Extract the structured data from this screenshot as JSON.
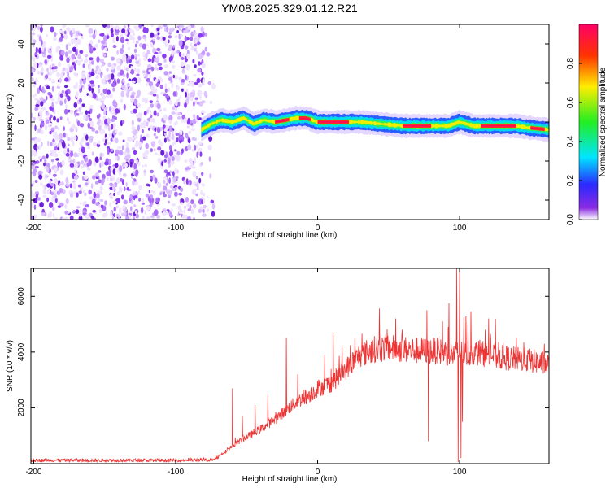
{
  "title": "YM08.2025.329.01.12.R21",
  "chart_data": [
    {
      "type": "heatmap",
      "name": "spectrogram",
      "xlabel": "Height of straight line (km)",
      "ylabel": "Frequency (Hz)",
      "xlim": [
        -202,
        163
      ],
      "ylim": [
        -50,
        50
      ],
      "xticks": [
        -200,
        -100,
        0,
        100
      ],
      "yticks": [
        -40,
        -20,
        0,
        20,
        40
      ],
      "noise_region_x": [
        -202,
        -80
      ],
      "signal_track": {
        "x": [
          -82,
          -75,
          -68,
          -60,
          -52,
          -45,
          -38,
          -30,
          -22,
          -15,
          -8,
          0,
          10,
          20,
          30,
          45,
          60,
          75,
          85,
          92,
          100,
          110,
          125,
          140,
          150,
          163
        ],
        "y": [
          -4,
          -1,
          1,
          0,
          2,
          -1,
          1,
          0,
          1,
          2,
          2,
          0,
          0,
          0,
          0,
          -1,
          -2,
          -2,
          -2,
          -2,
          0,
          -2,
          -2,
          -2,
          -3,
          -4
        ],
        "peak_segments": [
          [
            -30,
            -20
          ],
          [
            -13,
            -5
          ],
          [
            0,
            22
          ],
          [
            60,
            80
          ],
          [
            115,
            140
          ],
          [
            150,
            160
          ]
        ]
      },
      "colorbar": {
        "label": "Normalized spectral amplitude",
        "ticks": [
          "0.0",
          "0.2",
          "0.4",
          "0.6",
          "0.8"
        ],
        "tick_values": [
          0.0,
          0.2,
          0.4,
          0.6,
          0.8
        ],
        "range": [
          0,
          1
        ]
      }
    },
    {
      "type": "line",
      "name": "snr",
      "xlabel": "Height of straight line (km)",
      "ylabel": "SNR (10 * v/v)",
      "xlim": [
        -202,
        163
      ],
      "ylim": [
        0,
        7000
      ],
      "xticks": [
        -200,
        -100,
        0,
        100
      ],
      "yticks": [
        2000,
        4000,
        6000
      ],
      "color": "#ee3333",
      "envelope": {
        "x": [
          -202,
          -100,
          -75,
          -70,
          -62,
          -55,
          -45,
          -35,
          -25,
          -15,
          -5,
          0,
          10,
          20,
          30,
          40,
          50,
          60,
          70,
          80,
          90,
          95,
          100,
          105,
          110,
          120,
          130,
          140,
          150,
          163
        ],
        "y": [
          120,
          120,
          140,
          250,
          550,
          800,
          1100,
          1400,
          1800,
          2200,
          2500,
          2700,
          2900,
          3400,
          3900,
          4100,
          4150,
          4100,
          4050,
          4050,
          4000,
          3900,
          4000,
          3900,
          4000,
          3900,
          3800,
          3750,
          3700,
          3550
        ]
      },
      "spikes": [
        {
          "x": -60,
          "y": 2700
        },
        {
          "x": -53,
          "y": 1700
        },
        {
          "x": -44,
          "y": 2100
        },
        {
          "x": -35,
          "y": 2500
        },
        {
          "x": -22,
          "y": 4500
        },
        {
          "x": -14,
          "y": 3200
        },
        {
          "x": 5,
          "y": 3900
        },
        {
          "x": 11,
          "y": 4700
        },
        {
          "x": 77,
          "y": 5500
        },
        {
          "x": 78,
          "y": 800
        },
        {
          "x": 88,
          "y": 5100
        },
        {
          "x": 92,
          "y": 4900
        },
        {
          "x": 98,
          "y": 7000
        },
        {
          "x": 99,
          "y": 50
        },
        {
          "x": 100,
          "y": 7000
        },
        {
          "x": 101,
          "y": 200
        },
        {
          "x": 102,
          "y": 1500
        },
        {
          "x": 106,
          "y": 5000
        },
        {
          "x": 118,
          "y": 4800
        },
        {
          "x": 140,
          "y": 4500
        }
      ]
    }
  ]
}
